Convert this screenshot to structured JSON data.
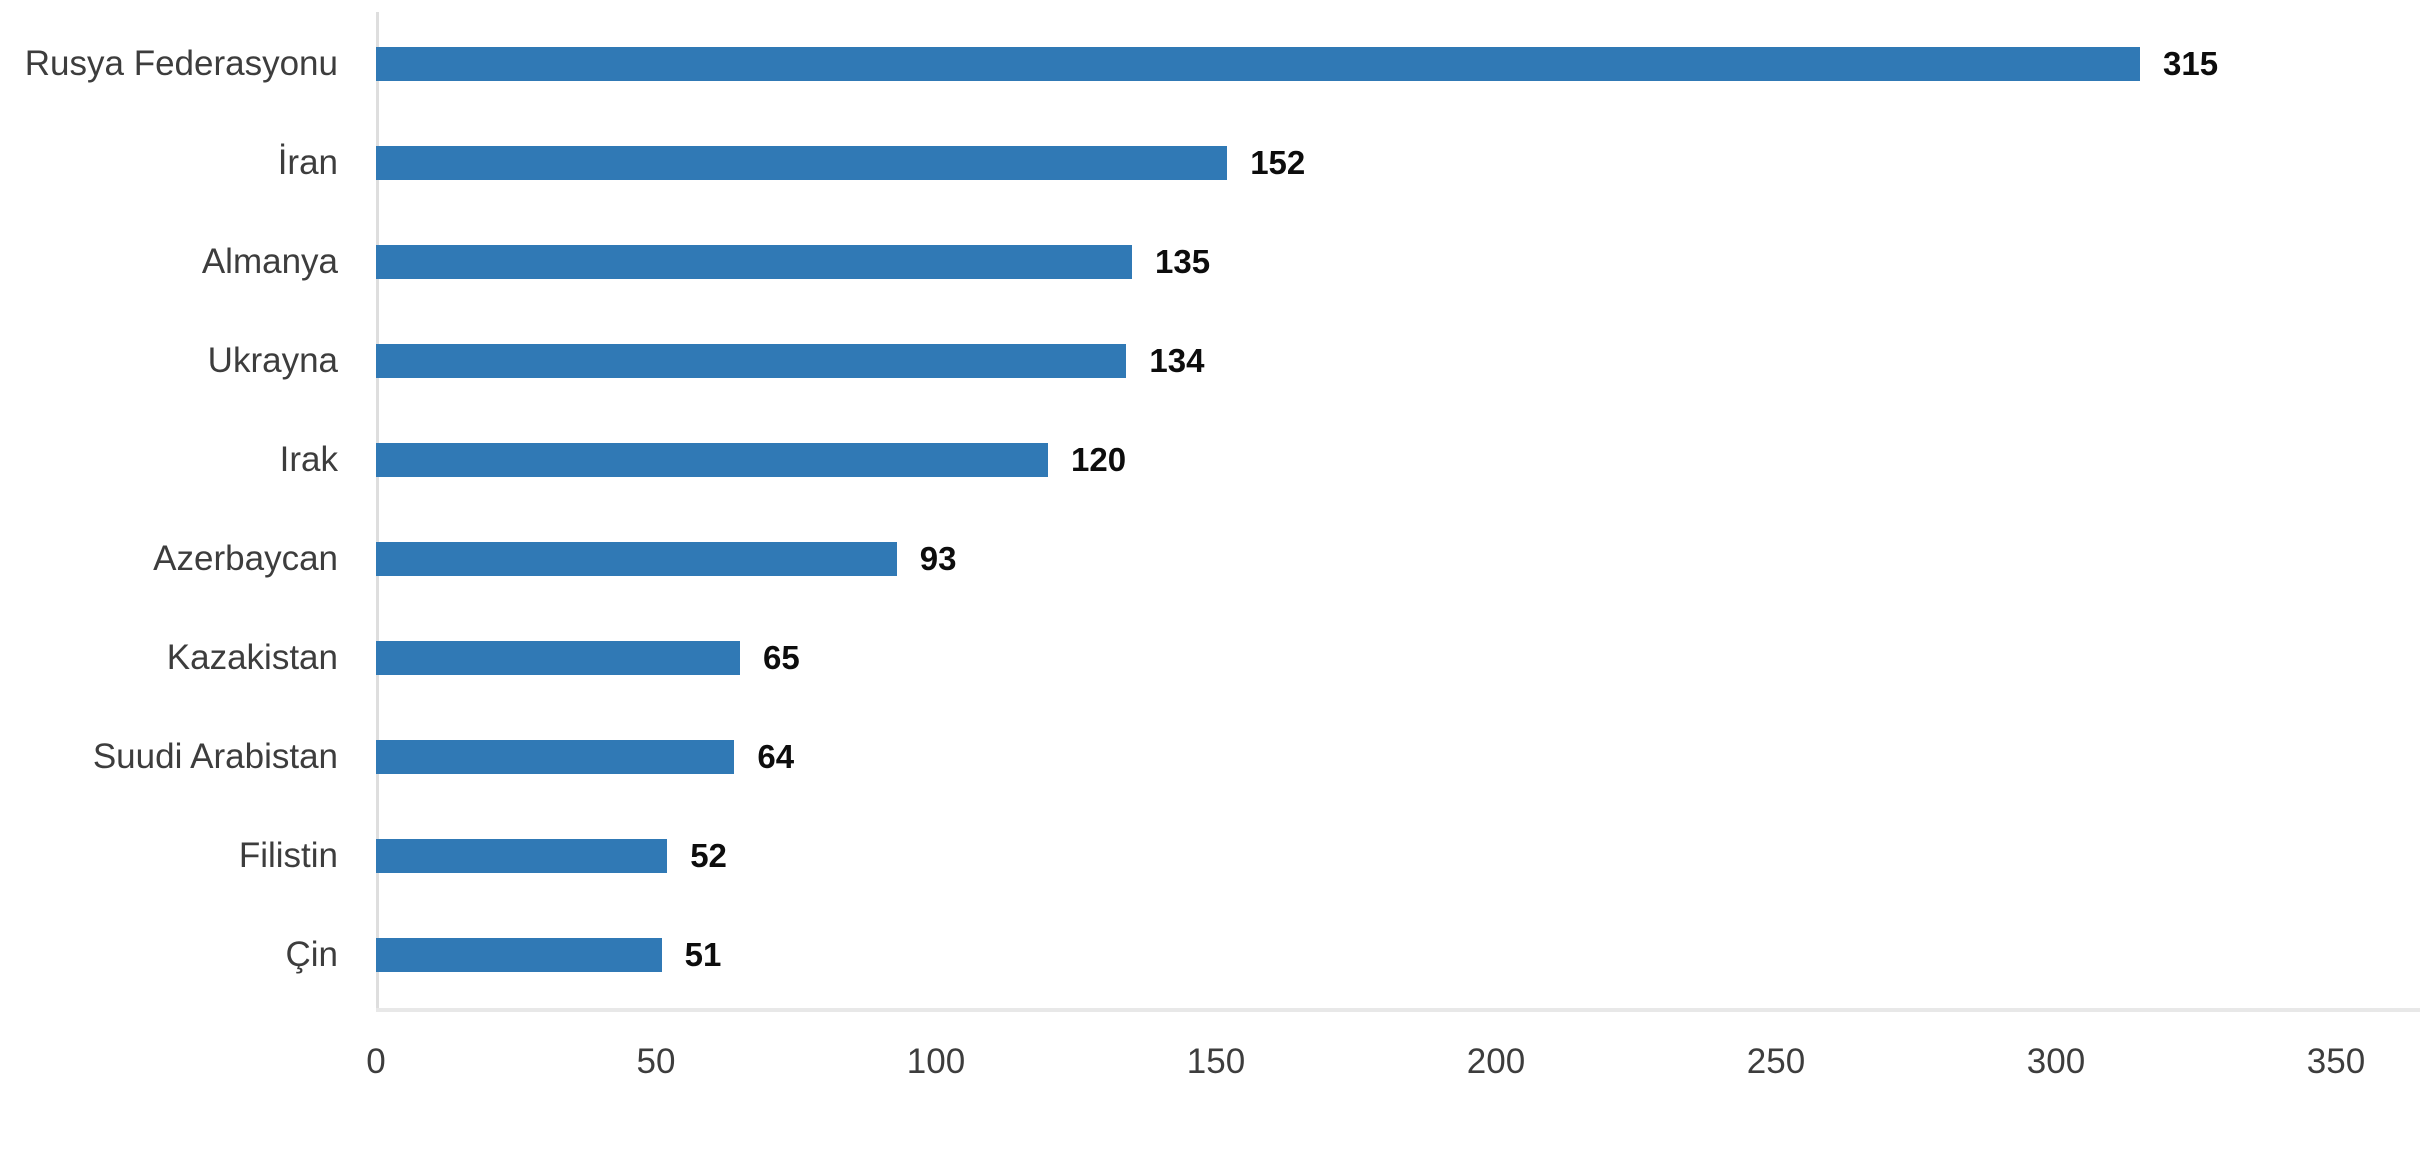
{
  "chart_data": {
    "type": "bar",
    "orientation": "horizontal",
    "title": "",
    "xlabel": "",
    "ylabel": "",
    "legend": "none",
    "grid": "off",
    "categories": [
      "Rusya Federasyonu",
      "İran",
      "Almanya",
      "Ukrayna",
      "Irak",
      "Azerbaycan",
      "Kazakistan",
      "Suudi Arabistan",
      "Filistin",
      "Çin"
    ],
    "values": [
      315,
      152,
      135,
      134,
      120,
      93,
      65,
      64,
      52,
      51
    ],
    "xticks": [
      0,
      50,
      100,
      150,
      200,
      250,
      300,
      350
    ],
    "xlim": [
      0,
      350
    ],
    "bar_color": "#3079b5",
    "category_label_color": "#3d3d3d",
    "value_label_color": "#0d0d0d",
    "tick_label_color": "#3d3d3d",
    "axis_line_color": "#dedede",
    "background_color": "#ffffff"
  }
}
